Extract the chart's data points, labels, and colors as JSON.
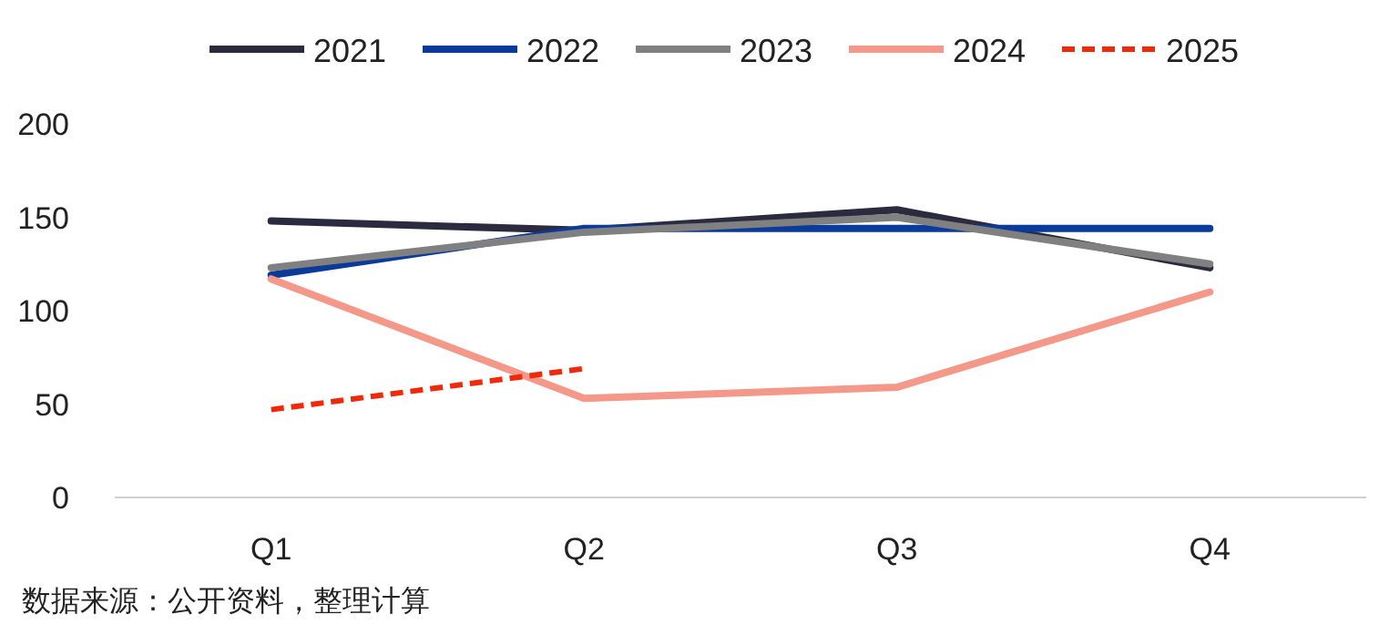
{
  "chart_data": {
    "type": "line",
    "categories": [
      "Q1",
      "Q2",
      "Q3",
      "Q4"
    ],
    "series": [
      {
        "name": "2021",
        "color": "#2b2a3f",
        "values": [
          148,
          143,
          154,
          123
        ]
      },
      {
        "name": "2022",
        "color": "#0a3a9a",
        "values": [
          119,
          144,
          144,
          144
        ]
      },
      {
        "name": "2023",
        "color": "#808080",
        "values": [
          123,
          142,
          150,
          125
        ]
      },
      {
        "name": "2024",
        "color": "#f4998a",
        "values": [
          117,
          53,
          59,
          110
        ]
      },
      {
        "name": "2025",
        "color": "#ee2a0a",
        "line_style": "dashed",
        "values": [
          47,
          69,
          null,
          null
        ]
      }
    ],
    "ylim": [
      0,
      200
    ],
    "yticks": [
      0,
      50,
      100,
      150,
      200
    ],
    "grid": false,
    "legend": "top",
    "annotations": [
      "数据来源：公开资料，整理计算"
    ]
  }
}
